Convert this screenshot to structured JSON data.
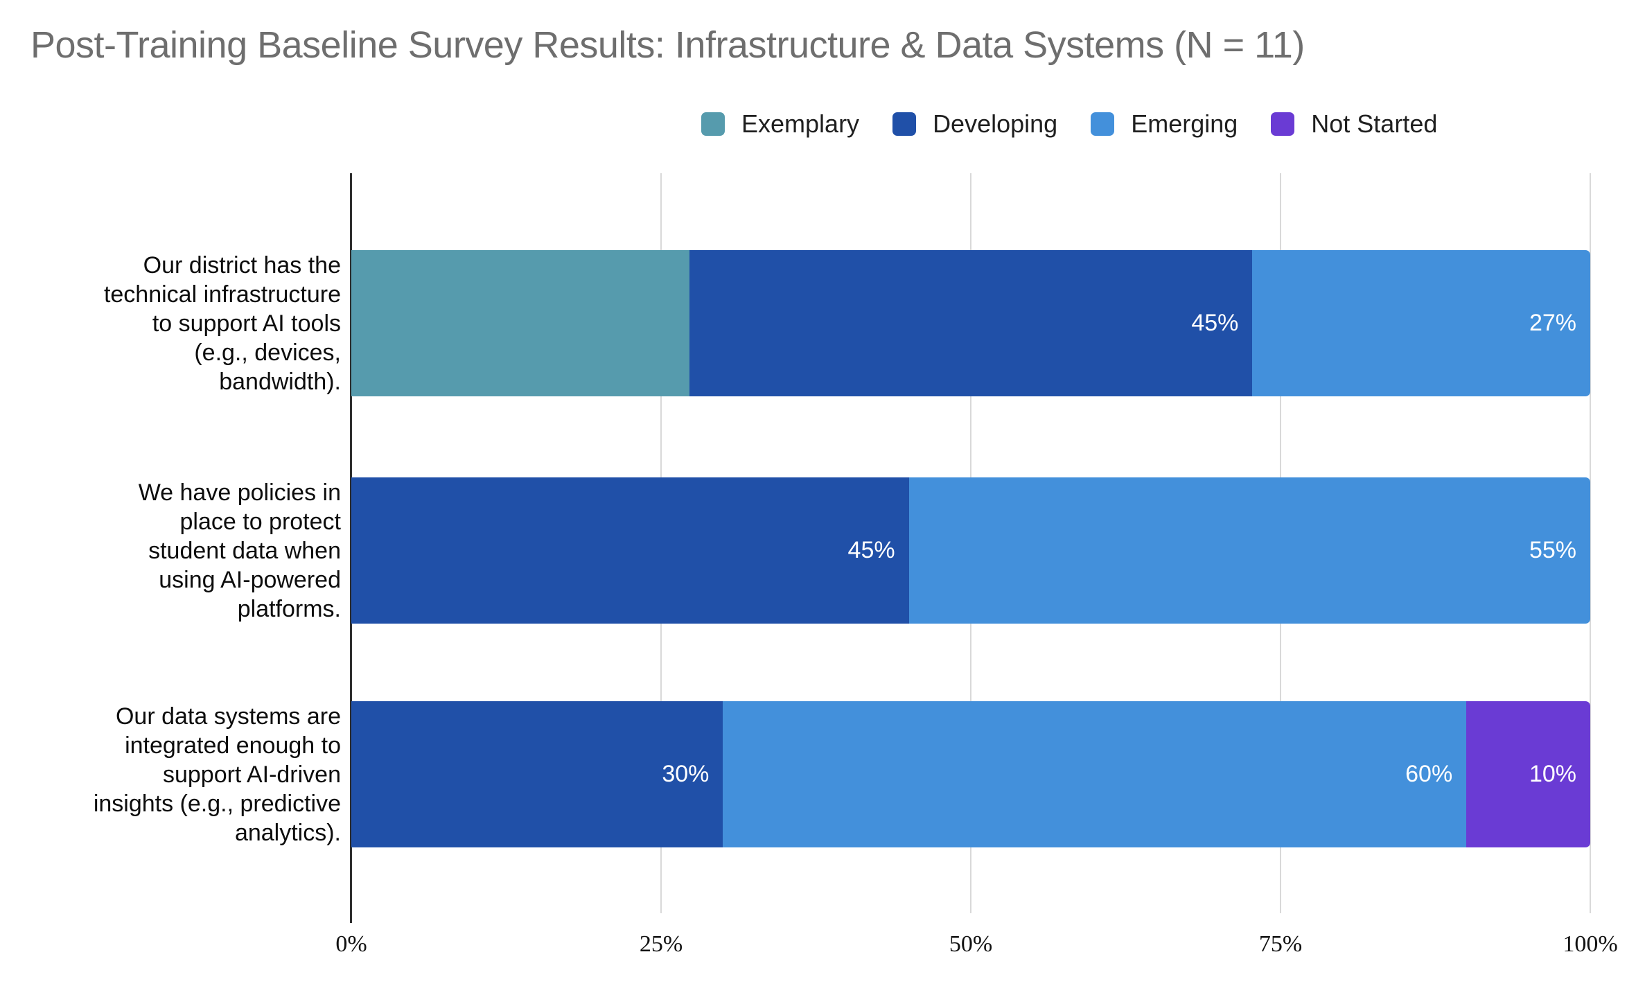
{
  "title": "Post-Training Baseline Survey Results: Infrastructure & Data Systems (N = 11)",
  "colors": {
    "exemplary": "#569bad",
    "developing": "#2050a8",
    "emerging": "#4390db",
    "not_started": "#6a3bd4",
    "bar_value_text": "#ffffff",
    "title_text": "#6e6e6e",
    "gridline": "#d9d9d9",
    "axis": "#2e2e2e"
  },
  "chart_data": {
    "type": "bar",
    "stacked": true,
    "orientation": "horizontal",
    "unit": "percent",
    "title": "Post-Training Baseline Survey Results: Infrastructure & Data Systems (N = 11)",
    "legend_position": "top",
    "grid": true,
    "xlim": [
      0,
      100
    ],
    "x_ticks": [
      "0%",
      "25%",
      "50%",
      "75%",
      "100%"
    ],
    "x_tick_values": [
      0,
      25,
      50,
      75,
      100
    ],
    "categories": [
      "Our district has the\ntechnical infrastructure\nto support AI tools\n(e.g., devices,\nbandwidth).",
      "We have policies in\nplace to protect\nstudent data when\nusing AI-powered\nplatforms.",
      "Our data systems are\nintegrated enough to\nsupport AI-driven\ninsights (e.g., predictive\nanalytics)."
    ],
    "series": [
      {
        "name": "Exemplary",
        "key": "exemplary",
        "values": [
          27,
          0,
          0
        ],
        "bar_labels": [
          "",
          "",
          ""
        ]
      },
      {
        "name": "Developing",
        "key": "developing",
        "values": [
          45,
          45,
          30
        ],
        "bar_labels": [
          "45%",
          "45%",
          "30%"
        ]
      },
      {
        "name": "Emerging",
        "key": "emerging",
        "values": [
          27,
          55,
          60
        ],
        "bar_labels": [
          "27%",
          "55%",
          "60%"
        ]
      },
      {
        "name": "Not Started",
        "key": "not_started",
        "values": [
          0,
          0,
          10
        ],
        "bar_labels": [
          "",
          "",
          "10%"
        ]
      }
    ]
  }
}
